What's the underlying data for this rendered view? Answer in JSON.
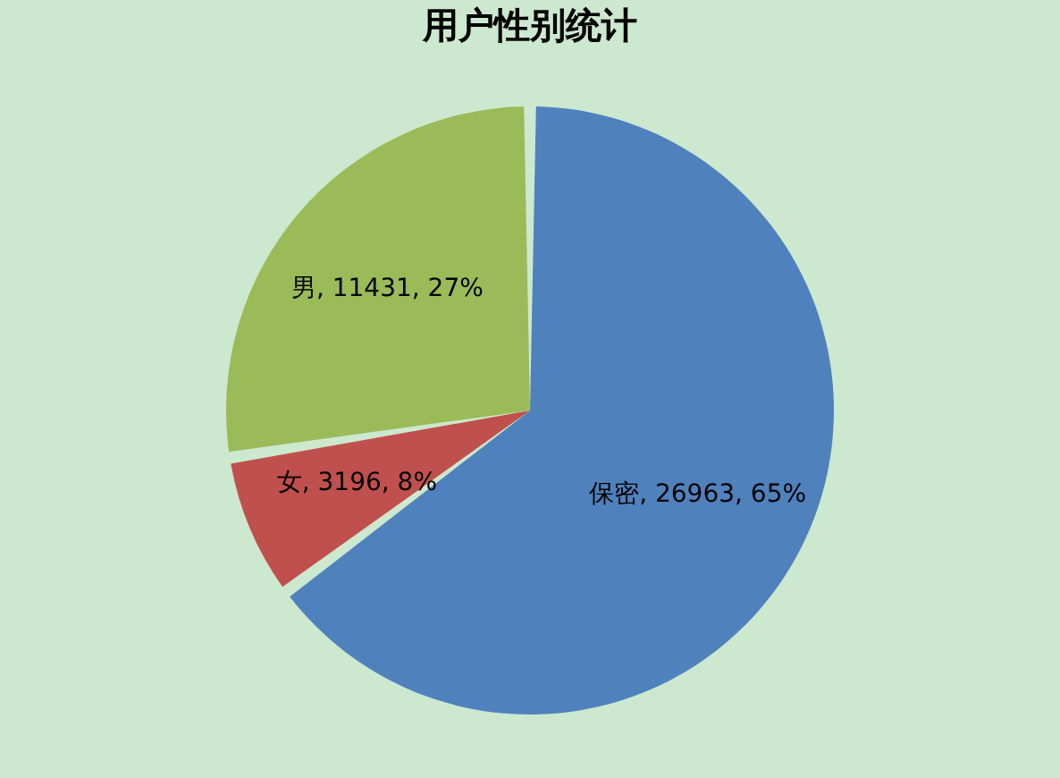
{
  "chart_data": {
    "type": "pie",
    "title": "用户性别统计",
    "categories": [
      "保密",
      "女",
      "男"
    ],
    "values": [
      26963,
      3196,
      11431
    ],
    "colors": [
      "#4f81bd",
      "#c0504d",
      "#9bbb59"
    ],
    "value_labels": [
      "26963, 65%",
      "3196, 8%",
      "11431, 27%"
    ],
    "legend": false
  }
}
